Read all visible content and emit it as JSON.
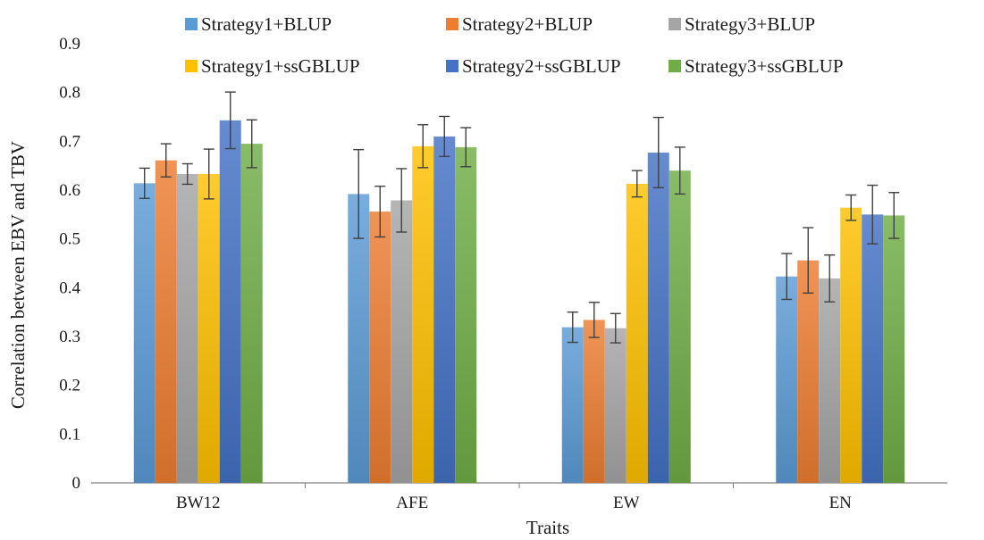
{
  "chart_data": {
    "type": "bar",
    "title": "",
    "xlabel": "Traits",
    "ylabel": "Correlation between EBV and TBV",
    "ylim": [
      0,
      0.9
    ],
    "ytick_step": 0.1,
    "yticks": [
      "0",
      "0.1",
      "0.2",
      "0.3",
      "0.4",
      "0.5",
      "0.6",
      "0.7",
      "0.8",
      "0.9"
    ],
    "grid": false,
    "legend_position": "top",
    "categories": [
      "BW12",
      "AFE",
      "EW",
      "EN"
    ],
    "series": [
      {
        "name": "Strategy1+BLUP",
        "color": "#5b9bd5",
        "values": [
          0.614,
          0.592,
          0.319,
          0.423
        ],
        "errors": [
          0.031,
          0.091,
          0.031,
          0.047
        ]
      },
      {
        "name": "Strategy2+BLUP",
        "color": "#ed7d31",
        "values": [
          0.661,
          0.556,
          0.334,
          0.456
        ],
        "errors": [
          0.034,
          0.052,
          0.036,
          0.067
        ]
      },
      {
        "name": "Strategy3+BLUP",
        "color": "#a5a5a5",
        "values": [
          0.633,
          0.579,
          0.317,
          0.419
        ],
        "errors": [
          0.021,
          0.065,
          0.03,
          0.048
        ]
      },
      {
        "name": "Strategy1+ssGBLUP",
        "color": "#ffc000",
        "values": [
          0.633,
          0.69,
          0.613,
          0.564
        ],
        "errors": [
          0.051,
          0.044,
          0.027,
          0.026
        ]
      },
      {
        "name": "Strategy2+ssGBLUP",
        "color": "#4472c4",
        "values": [
          0.743,
          0.71,
          0.677,
          0.55
        ],
        "errors": [
          0.058,
          0.041,
          0.072,
          0.06
        ]
      },
      {
        "name": "Strategy3+ssGBLUP",
        "color": "#70ad47",
        "values": [
          0.695,
          0.688,
          0.64,
          0.548
        ],
        "errors": [
          0.049,
          0.04,
          0.048,
          0.047
        ]
      }
    ]
  }
}
